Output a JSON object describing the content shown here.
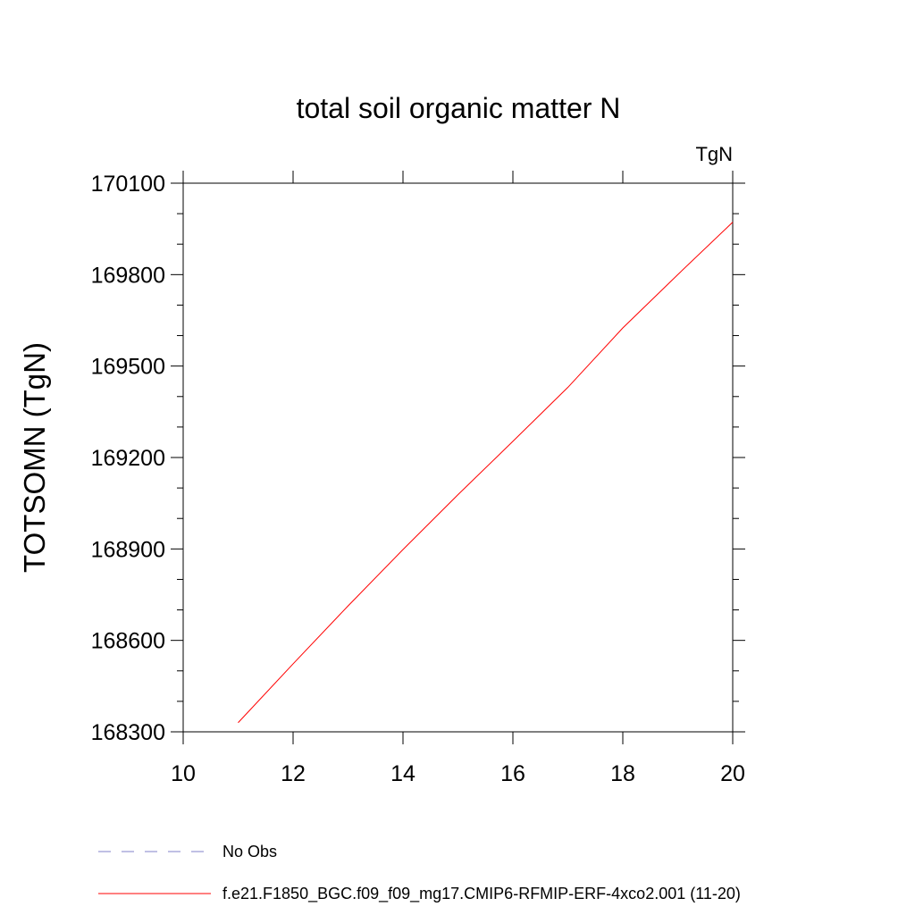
{
  "chart_data": {
    "type": "line",
    "title": "total soil organic matter N",
    "units_label": "TgN",
    "ylabel": "TOTSOMN  (TgN)",
    "xlabel": "",
    "xlim": [
      10,
      20
    ],
    "ylim": [
      168300,
      170100
    ],
    "x_ticks": [
      "10",
      "12",
      "14",
      "16",
      "18",
      "20"
    ],
    "y_ticks": [
      "168300",
      "168600",
      "168900",
      "169200",
      "169500",
      "169800",
      "170100"
    ],
    "grid": false,
    "legend_position": "bottom-left",
    "series": [
      {
        "name": "f.e21.F1850_BGC.f09_f09_mg17.CMIP6-RFMIP-ERF-4xco2.001 (11-20)",
        "color": "#ff0000",
        "style": "solid",
        "x": [
          11,
          12,
          13,
          14,
          15,
          16,
          17,
          18,
          19,
          20
        ],
        "y": [
          168330,
          168523,
          168713,
          168898,
          169078,
          169253,
          169430,
          169625,
          169800,
          169972
        ]
      },
      {
        "name": "No Obs",
        "color": "#8080c8",
        "style": "dashed",
        "x": [],
        "y": []
      }
    ]
  }
}
